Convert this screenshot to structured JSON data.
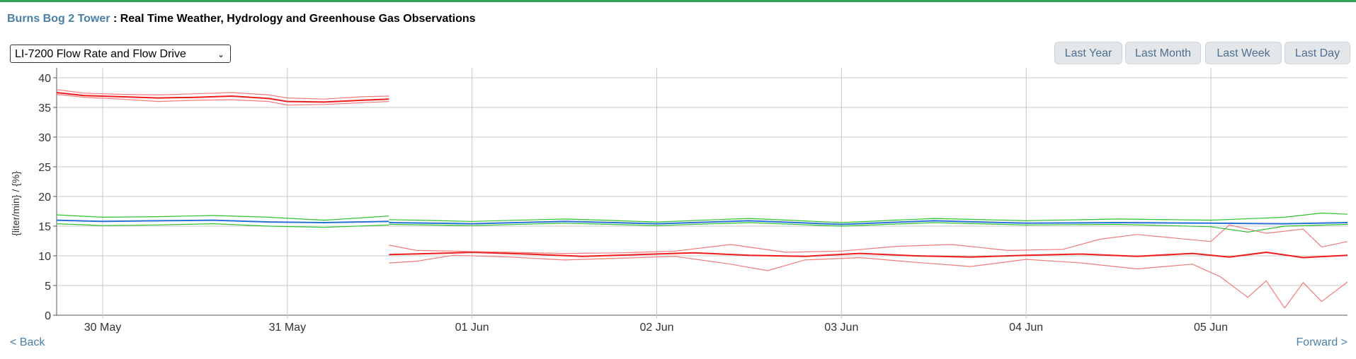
{
  "header": {
    "station": "Burns Bog 2 Tower",
    "separator": " : ",
    "subtitle": "Real Time Weather, Hydrology and Greenhouse Gas Observations"
  },
  "selector": {
    "value": "LI-7200 Flow Rate and Flow Drive"
  },
  "range_buttons": [
    "Last Year",
    "Last Month",
    "Last Week",
    "Last Day"
  ],
  "nav": {
    "back": "< Back",
    "forward": "Forward >"
  },
  "chart_data": {
    "type": "line",
    "title": "",
    "xlabel": "",
    "ylabel": "{liter/min} / {%}",
    "ylim": [
      0,
      40
    ],
    "yticks": [
      0,
      5,
      10,
      15,
      20,
      25,
      30,
      35,
      40
    ],
    "xlim": [
      -0.25,
      6.74
    ],
    "xticks": [
      {
        "label": "30 May",
        "x": 0
      },
      {
        "label": "31 May",
        "x": 1
      },
      {
        "label": "01 Jun",
        "x": 2
      },
      {
        "label": "02 Jun",
        "x": 3
      },
      {
        "label": "03 Jun",
        "x": 4
      },
      {
        "label": "04 Jun",
        "x": 5
      },
      {
        "label": "05 Jun",
        "x": 6
      }
    ],
    "grid": true,
    "series": [
      {
        "color": "#ee1c1c",
        "role": "mean",
        "segments": [
          [
            [
              -0.25,
              37.5
            ],
            [
              -0.1,
              37.0
            ],
            [
              0.1,
              36.8
            ],
            [
              0.3,
              36.6
            ],
            [
              0.5,
              36.7
            ],
            [
              0.7,
              36.9
            ],
            [
              0.9,
              36.5
            ],
            [
              1.0,
              36.0
            ],
            [
              1.2,
              35.9
            ],
            [
              1.4,
              36.2
            ],
            [
              1.55,
              36.4
            ]
          ],
          [
            [
              1.55,
              10.2
            ],
            [
              1.8,
              10.4
            ],
            [
              2.0,
              10.6
            ],
            [
              2.3,
              10.3
            ],
            [
              2.6,
              9.9
            ],
            [
              2.9,
              10.2
            ],
            [
              3.2,
              10.5
            ],
            [
              3.5,
              10.1
            ],
            [
              3.8,
              9.9
            ],
            [
              4.1,
              10.4
            ],
            [
              4.4,
              10.0
            ],
            [
              4.7,
              9.8
            ],
            [
              5.0,
              10.1
            ],
            [
              5.3,
              10.3
            ],
            [
              5.6,
              9.9
            ],
            [
              5.9,
              10.4
            ],
            [
              6.1,
              9.8
            ],
            [
              6.3,
              10.6
            ],
            [
              6.5,
              9.7
            ],
            [
              6.74,
              10.1
            ]
          ]
        ]
      },
      {
        "color": "#f07b7b",
        "role": "upper",
        "segments": [
          [
            [
              -0.25,
              38.0
            ],
            [
              -0.1,
              37.4
            ],
            [
              0.1,
              37.2
            ],
            [
              0.3,
              37.1
            ],
            [
              0.5,
              37.3
            ],
            [
              0.7,
              37.5
            ],
            [
              0.9,
              37.1
            ],
            [
              1.0,
              36.6
            ],
            [
              1.2,
              36.4
            ],
            [
              1.4,
              36.8
            ],
            [
              1.55,
              36.9
            ]
          ],
          [
            [
              1.55,
              11.8
            ],
            [
              1.7,
              10.9
            ],
            [
              1.9,
              10.8
            ],
            [
              2.2,
              10.6
            ],
            [
              2.5,
              10.4
            ],
            [
              2.8,
              10.5
            ],
            [
              3.1,
              10.8
            ],
            [
              3.4,
              11.9
            ],
            [
              3.7,
              10.6
            ],
            [
              4.0,
              10.8
            ],
            [
              4.3,
              11.6
            ],
            [
              4.6,
              11.9
            ],
            [
              4.9,
              10.9
            ],
            [
              5.2,
              11.1
            ],
            [
              5.4,
              12.8
            ],
            [
              5.6,
              13.6
            ],
            [
              5.8,
              13.0
            ],
            [
              6.0,
              12.4
            ],
            [
              6.1,
              15.2
            ],
            [
              6.3,
              13.8
            ],
            [
              6.5,
              14.5
            ],
            [
              6.6,
              11.5
            ],
            [
              6.74,
              12.4
            ]
          ]
        ]
      },
      {
        "color": "#f07b7b",
        "role": "lower",
        "segments": [
          [
            [
              -0.25,
              37.2
            ],
            [
              -0.1,
              36.7
            ],
            [
              0.1,
              36.4
            ],
            [
              0.3,
              36.0
            ],
            [
              0.5,
              36.2
            ],
            [
              0.7,
              36.3
            ],
            [
              0.9,
              36.0
            ],
            [
              1.0,
              35.4
            ],
            [
              1.2,
              35.5
            ],
            [
              1.4,
              35.8
            ],
            [
              1.55,
              36.0
            ]
          ],
          [
            [
              1.55,
              8.8
            ],
            [
              1.7,
              9.1
            ],
            [
              1.9,
              10.1
            ],
            [
              2.2,
              9.8
            ],
            [
              2.5,
              9.3
            ],
            [
              2.8,
              9.6
            ],
            [
              3.1,
              9.9
            ],
            [
              3.4,
              8.6
            ],
            [
              3.6,
              7.5
            ],
            [
              3.8,
              9.3
            ],
            [
              4.1,
              9.7
            ],
            [
              4.4,
              8.9
            ],
            [
              4.7,
              8.2
            ],
            [
              5.0,
              9.4
            ],
            [
              5.3,
              8.8
            ],
            [
              5.6,
              7.8
            ],
            [
              5.9,
              8.6
            ],
            [
              6.05,
              6.5
            ],
            [
              6.2,
              3.0
            ],
            [
              6.3,
              5.8
            ],
            [
              6.4,
              1.2
            ],
            [
              6.5,
              5.5
            ],
            [
              6.6,
              2.3
            ],
            [
              6.74,
              5.6
            ]
          ]
        ]
      },
      {
        "color": "#2a6fd6",
        "role": "mean",
        "segments": [
          [
            [
              -0.25,
              16.0
            ],
            [
              0.0,
              15.8
            ],
            [
              0.3,
              15.9
            ],
            [
              0.6,
              16.0
            ],
            [
              0.9,
              15.7
            ],
            [
              1.2,
              15.6
            ],
            [
              1.55,
              15.8
            ]
          ],
          [
            [
              1.55,
              15.6
            ],
            [
              2.0,
              15.4
            ],
            [
              2.5,
              15.8
            ],
            [
              3.0,
              15.4
            ],
            [
              3.5,
              15.9
            ],
            [
              4.0,
              15.3
            ],
            [
              4.5,
              15.9
            ],
            [
              5.0,
              15.5
            ],
            [
              5.5,
              15.6
            ],
            [
              6.0,
              15.5
            ],
            [
              6.4,
              15.4
            ],
            [
              6.74,
              15.6
            ]
          ]
        ]
      },
      {
        "color": "#2ec22e",
        "role": "upper",
        "segments": [
          [
            [
              -0.25,
              16.9
            ],
            [
              0.0,
              16.5
            ],
            [
              0.3,
              16.6
            ],
            [
              0.6,
              16.8
            ],
            [
              0.9,
              16.5
            ],
            [
              1.2,
              16.0
            ],
            [
              1.55,
              16.7
            ]
          ],
          [
            [
              1.55,
              16.1
            ],
            [
              2.0,
              15.8
            ],
            [
              2.5,
              16.2
            ],
            [
              3.0,
              15.7
            ],
            [
              3.5,
              16.3
            ],
            [
              4.0,
              15.6
            ],
            [
              4.5,
              16.3
            ],
            [
              5.0,
              15.9
            ],
            [
              5.5,
              16.2
            ],
            [
              6.0,
              16.0
            ],
            [
              6.4,
              16.5
            ],
            [
              6.6,
              17.2
            ],
            [
              6.74,
              17.0
            ]
          ]
        ]
      },
      {
        "color": "#2ec22e",
        "role": "lower",
        "segments": [
          [
            [
              -0.25,
              15.4
            ],
            [
              0.0,
              15.1
            ],
            [
              0.3,
              15.2
            ],
            [
              0.6,
              15.4
            ],
            [
              0.9,
              15.0
            ],
            [
              1.2,
              14.8
            ],
            [
              1.55,
              15.2
            ]
          ],
          [
            [
              1.55,
              15.3
            ],
            [
              2.0,
              15.1
            ],
            [
              2.5,
              15.5
            ],
            [
              3.0,
              15.1
            ],
            [
              3.5,
              15.6
            ],
            [
              4.0,
              15.0
            ],
            [
              4.5,
              15.6
            ],
            [
              5.0,
              15.2
            ],
            [
              5.5,
              15.3
            ],
            [
              6.0,
              14.9
            ],
            [
              6.2,
              14.0
            ],
            [
              6.4,
              15.0
            ],
            [
              6.74,
              15.3
            ]
          ]
        ]
      }
    ]
  }
}
